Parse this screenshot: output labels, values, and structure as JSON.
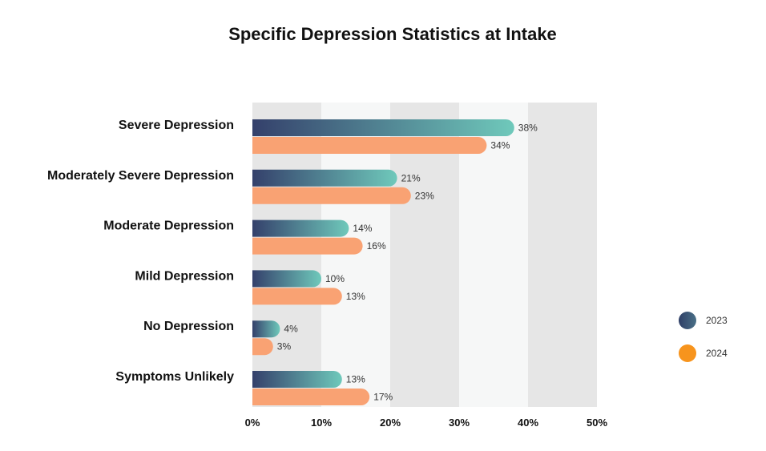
{
  "chart_data": {
    "type": "bar",
    "orientation": "horizontal",
    "title": "Specific Depression Statistics at Intake",
    "categories": [
      "Severe Depression",
      "Moderately Severe Depression",
      "Moderate Depression",
      "Mild Depression",
      "No Depression",
      "Symptoms Unlikely"
    ],
    "series": [
      {
        "name": "2023",
        "values": [
          38,
          21,
          14,
          10,
          4,
          13
        ],
        "labels": [
          "38%",
          "21%",
          "14%",
          "10%",
          "4%",
          "13%"
        ],
        "color_start": "#34406b",
        "color_end": "#6fc9bb"
      },
      {
        "name": "2024",
        "values": [
          34,
          23,
          16,
          13,
          3,
          17
        ],
        "labels": [
          "34%",
          "23%",
          "16%",
          "13%",
          "3%",
          "17%"
        ],
        "color": "#f9a273"
      }
    ],
    "xlim": [
      0,
      50
    ],
    "xticks": [
      "0%",
      "10%",
      "20%",
      "30%",
      "40%",
      "50%"
    ],
    "xlabel": "",
    "ylabel": "",
    "legend": {
      "position": "right",
      "entries": [
        "2023",
        "2024"
      ],
      "colors": [
        "#2f3f67",
        "#f7941d"
      ]
    },
    "grid": "alternating vertical bands"
  }
}
